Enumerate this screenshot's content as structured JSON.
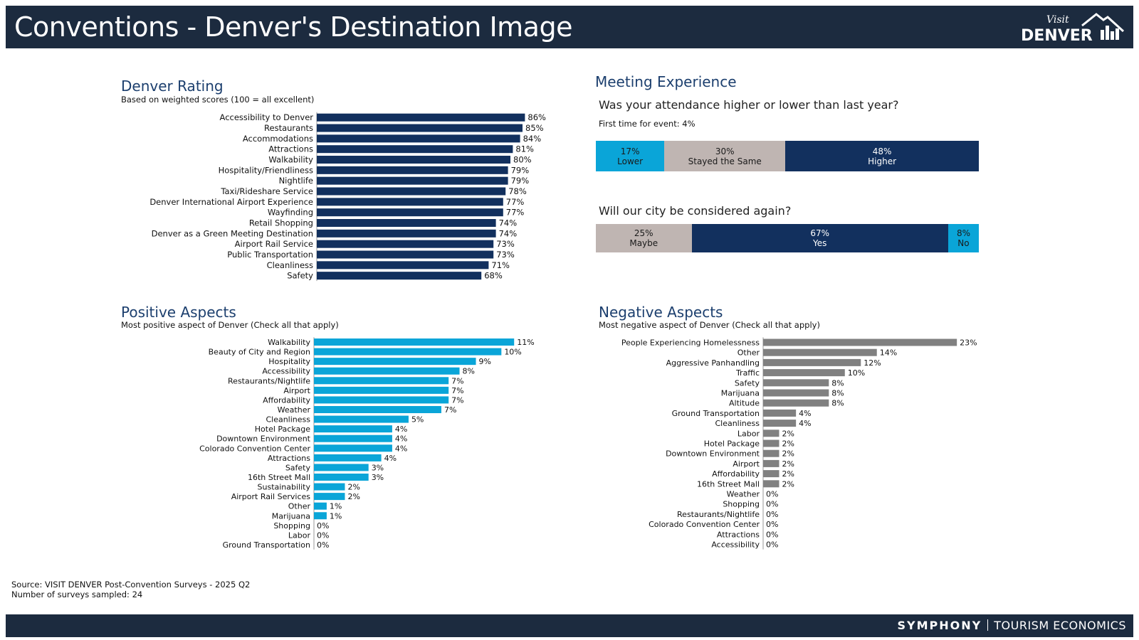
{
  "header": {
    "title": "Conventions - Denver's Destination Image",
    "logo_text": "Visit DENVER"
  },
  "footer": {
    "brand_main": "SYMPHONY",
    "brand_sub": "TOURISM ECONOMICS"
  },
  "colors": {
    "navy": "#12305e",
    "cyan": "#0aa5d8",
    "gray": "#808080",
    "taupe": "#bfb5b2",
    "header_bg": "#1c2b3f",
    "title_blue": "#1c3f6e"
  },
  "rating": {
    "title": "Denver Rating",
    "subtitle": "Based on weighted scores (100 = all excellent)"
  },
  "positive": {
    "title": "Positive Aspects",
    "subtitle": "Most positive aspect of Denver (Check all that apply)"
  },
  "negative": {
    "title": "Negative Aspects",
    "subtitle": "Most negative aspect of Denver (Check all that apply)"
  },
  "meeting": {
    "title": "Meeting Experience",
    "q1": "Was your attendance higher or lower than last year?",
    "q1_note": "First time for event: 4%",
    "q2": "Will our city be considered again?"
  },
  "source": {
    "line1": "Source: VISIT DENVER Post-Convention Surveys - 2025 Q2",
    "line2": "Number of surveys sampled: 24"
  },
  "chart_data": [
    {
      "id": "rating",
      "type": "bar",
      "orientation": "horizontal",
      "color": "#12305e",
      "categories": [
        "Accessibility to Denver",
        "Restaurants",
        "Accommodations",
        "Attractions",
        "Walkability",
        "Hospitality/Friendliness",
        "Nightlife",
        "Taxi/Rideshare Service",
        "Denver International Airport Experience",
        "Wayfinding",
        "Retail Shopping",
        "Denver as a Green Meeting Destination",
        "Airport Rail Service",
        "Public Transportation",
        "Cleanliness",
        "Safety"
      ],
      "values": [
        86,
        85,
        84,
        81,
        80,
        79,
        79,
        78,
        77,
        77,
        74,
        74,
        73,
        73,
        71,
        68
      ],
      "labels": [
        "86%",
        "85%",
        "84%",
        "81%",
        "80%",
        "79%",
        "79%",
        "78%",
        "77%",
        "77%",
        "74%",
        "74%",
        "73%",
        "73%",
        "71%",
        "68%"
      ],
      "xlim": [
        0,
        100
      ]
    },
    {
      "id": "positive",
      "type": "bar",
      "orientation": "horizontal",
      "color": "#0aa5d8",
      "categories": [
        "Walkability",
        "Beauty of City and Region",
        "Hospitality",
        "Accessibility",
        "Restaurants/Nightlife",
        "Airport",
        "Affordability",
        "Weather",
        "Cleanliness",
        "Hotel Package",
        "Downtown Environment",
        "Colorado Convention Center",
        "Attractions",
        "Safety",
        "16th Street Mall",
        "Sustainability",
        "Airport Rail Services",
        "Other",
        "Marijuana",
        "Shopping",
        "Labor",
        "Ground Transportation"
      ],
      "values": [
        11.0,
        10.3,
        8.9,
        8.0,
        7.4,
        7.4,
        7.4,
        7.0,
        5.2,
        4.3,
        4.3,
        4.3,
        3.7,
        3.0,
        3.0,
        1.7,
        1.7,
        0.7,
        0.7,
        0,
        0,
        0
      ],
      "labels": [
        "11%",
        "10%",
        "9%",
        "8%",
        "7%",
        "7%",
        "7%",
        "7%",
        "5%",
        "4%",
        "4%",
        "4%",
        "4%",
        "3%",
        "3%",
        "2%",
        "2%",
        "1%",
        "1%",
        "0%",
        "0%",
        "0%"
      ],
      "xlim": [
        0,
        11.5
      ]
    },
    {
      "id": "negative",
      "type": "bar",
      "orientation": "horizontal",
      "color": "#808080",
      "categories": [
        "People Experiencing Homelessness",
        "Other",
        "Aggressive Panhandling",
        "Traffic",
        "Safety",
        "Marijuana",
        "Altitude",
        "Ground Transportation",
        "Cleanliness",
        "Labor",
        "Hotel Package",
        "Downtown Environment",
        "Airport",
        "Affordability",
        "16th Street Mall",
        "Weather",
        "Shopping",
        "Restaurants/Nightlife",
        "Colorado Convention Center",
        "Attractions",
        "Accessibility"
      ],
      "values": [
        23,
        13.5,
        11.6,
        9.7,
        7.8,
        7.8,
        7.8,
        3.9,
        3.9,
        1.9,
        1.9,
        1.9,
        1.9,
        1.9,
        1.9,
        0,
        0,
        0,
        0,
        0,
        0
      ],
      "labels": [
        "23%",
        "14%",
        "12%",
        "10%",
        "8%",
        "8%",
        "8%",
        "4%",
        "4%",
        "2%",
        "2%",
        "2%",
        "2%",
        "2%",
        "2%",
        "0%",
        "0%",
        "0%",
        "0%",
        "0%",
        "0%"
      ],
      "xlim": [
        0,
        24
      ]
    },
    {
      "id": "attendance",
      "type": "bar",
      "stacked": true,
      "orientation": "horizontal",
      "segments": [
        {
          "name": "Lower",
          "value": 17,
          "label": "17%",
          "color": "#0aa5d8",
          "text_color": "#1a1a1a"
        },
        {
          "name": "Stayed the Same",
          "value": 30,
          "label": "30%",
          "color": "#bfb5b2",
          "text_color": "#1a1a1a"
        },
        {
          "name": "Higher",
          "value": 48,
          "label": "48%",
          "color": "#12305e",
          "text_color": "#ffffff"
        }
      ]
    },
    {
      "id": "consider_again",
      "type": "bar",
      "stacked": true,
      "orientation": "horizontal",
      "segments": [
        {
          "name": "Maybe",
          "value": 25,
          "label": "25%",
          "color": "#bfb5b2",
          "text_color": "#1a1a1a"
        },
        {
          "name": "Yes",
          "value": 67,
          "label": "67%",
          "color": "#12305e",
          "text_color": "#ffffff"
        },
        {
          "name": "No",
          "value": 8,
          "label": "8%",
          "color": "#0aa5d8",
          "text_color": "#1a1a1a"
        }
      ]
    }
  ]
}
